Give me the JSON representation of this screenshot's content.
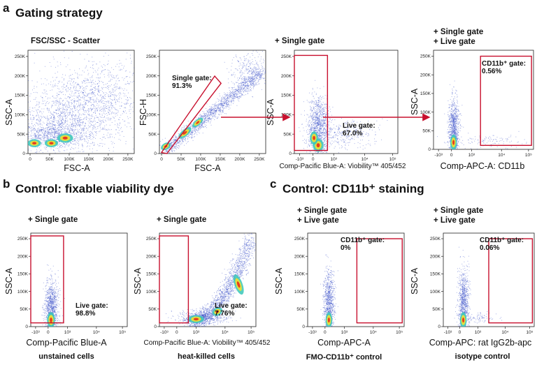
{
  "figure": {
    "a": {
      "letter": "a",
      "title": "Gating strategy",
      "plots": [
        {
          "title": "FSC/SSC - Scatter",
          "ylabel": "SSC-A",
          "xlabel": "FSC-A",
          "yticks": [
            "250K",
            "200K",
            "150K",
            "100K",
            "50K",
            "0"
          ],
          "xticks": [
            "0",
            "50K",
            "100K",
            "150K",
            "200K",
            "250K"
          ]
        },
        {
          "title": "",
          "ylabel": "FSC-H",
          "xlabel": "FSC-A",
          "gate_label": "Single gate:",
          "gate_value": "91.3%",
          "yticks": [
            "250K",
            "200K",
            "150K",
            "100K",
            "50K",
            "0"
          ],
          "xticks": [
            "0",
            "50K",
            "100K",
            "150K",
            "200K",
            "250K"
          ]
        },
        {
          "title": "+ Single gate",
          "ylabel": "SSC-A",
          "xlabel": "Comp-Pacific Blue-A: Viobility™ 405/452",
          "gate_label": "Live gate:",
          "gate_value": "67.0%",
          "yticks": [
            "250K",
            "200K",
            "150K",
            "100K",
            "50K",
            "0"
          ],
          "xticks": [
            "-10³",
            "0",
            "10³",
            "10⁴",
            "10⁵"
          ]
        },
        {
          "title": "+ Single gate",
          "title2": "+ Live gate",
          "ylabel": "SSC-A",
          "xlabel": "Comp-APC-A: CD11b",
          "gate_label": "CD11b⁺ gate:",
          "gate_value": "0.56%",
          "yticks": [
            "250K",
            "200K",
            "150K",
            "100K",
            "50K",
            "0"
          ],
          "xticks": [
            "-10³",
            "0",
            "10³",
            "10⁴",
            "10⁵"
          ]
        }
      ]
    },
    "b": {
      "letter": "b",
      "title": "Control: fixable viability dye",
      "plots": [
        {
          "title": "+ Single gate",
          "ylabel": "SSC-A",
          "xlabel": "Comp-Pacific Blue-A",
          "caption": "unstained cells",
          "gate_label": "Live gate:",
          "gate_value": "98.8%",
          "yticks": [
            "250K",
            "200K",
            "150K",
            "100K",
            "50K",
            "0"
          ],
          "xticks": [
            "-10³",
            "0",
            "10³",
            "10⁴",
            "10⁵"
          ]
        },
        {
          "title": "+ Single gate",
          "ylabel": "SSC-A",
          "xlabel": "Comp-Pacific Blue-A: Viobility™ 405/452",
          "caption": "heat-killed cells",
          "gate_label": "Live gate:",
          "gate_value": "7.76%",
          "yticks": [
            "250K",
            "200K",
            "150K",
            "100K",
            "50K",
            "0"
          ],
          "xticks": [
            "-10³",
            "0",
            "10³",
            "10⁴",
            "10⁵"
          ]
        }
      ]
    },
    "c": {
      "letter": "c",
      "title": "Control: CD11b⁺ staining",
      "plots": [
        {
          "title": "+ Single gate",
          "title2": "+ Live gate",
          "ylabel": "SSC-A",
          "xlabel": "Comp-APC-A",
          "caption": "FMO-CD11b⁺ control",
          "gate_label": "CD11b⁺ gate:",
          "gate_value": "0%",
          "yticks": [
            "250K",
            "200K",
            "150K",
            "100K",
            "50K",
            "0"
          ],
          "xticks": [
            "-10³",
            "0",
            "10³",
            "10⁴",
            "10⁵"
          ]
        },
        {
          "title": "+ Single gate",
          "title2": "+ Live gate",
          "ylabel": "SSC-A",
          "xlabel": "Comp-APC: rat IgG2b-apc",
          "caption": "isotype control",
          "gate_label": "CD11b⁺ gate:",
          "gate_value": "0.06%",
          "yticks": [
            "250K",
            "200K",
            "150K",
            "100K",
            "50K",
            "0"
          ],
          "xticks": [
            "-10³",
            "0",
            "10³",
            "10⁴",
            "10⁵"
          ]
        }
      ]
    },
    "colors": {
      "gate": "#c8102e",
      "dots": "#3b50c8",
      "density_mid": "#38c7b8",
      "density_high": "#f2e030",
      "density_peak": "#e8321e"
    }
  }
}
